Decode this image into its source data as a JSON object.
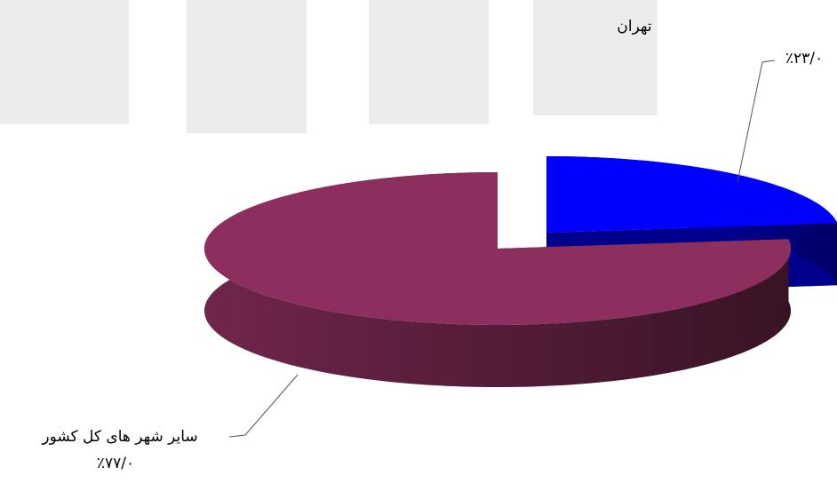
{
  "chart_data": {
    "type": "pie",
    "categories": [
      "تهران",
      "سایر شهر های کل کشور"
    ],
    "values": [
      23,
      77
    ],
    "value_labels": [
      "٪۲۳/۰",
      "٪۷۷/۰"
    ],
    "colors": [
      "#0000ff",
      "#8c2f5e"
    ]
  }
}
